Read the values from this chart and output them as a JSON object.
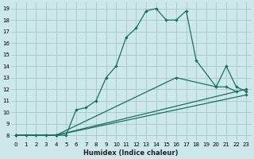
{
  "xlabel": "Humidex (Indice chaleur)",
  "background_color": "#cde8e8",
  "grid_color": "#aacccc",
  "line_color": "#1a7060",
  "xlim": [
    -0.5,
    23.5
  ],
  "ylim": [
    7.5,
    19.5
  ],
  "xticks": [
    0,
    1,
    2,
    3,
    4,
    5,
    6,
    7,
    8,
    9,
    10,
    11,
    12,
    13,
    14,
    15,
    16,
    17,
    18,
    19,
    20,
    21,
    22,
    23
  ],
  "yticks": [
    8,
    9,
    10,
    11,
    12,
    13,
    14,
    15,
    16,
    17,
    18,
    19
  ],
  "line1_x": [
    0,
    1,
    2,
    3,
    4,
    5,
    6,
    7,
    8,
    9,
    10,
    11,
    12,
    13,
    14,
    15,
    16,
    17,
    18,
    20,
    21,
    22
  ],
  "line1_y": [
    8,
    8,
    8,
    8,
    8,
    8,
    10.2,
    10.4,
    11.0,
    13.0,
    14.0,
    16.5,
    17.3,
    18.8,
    19.0,
    18.0,
    18.0,
    18.8,
    14.5,
    12.2,
    12.2,
    11.8
  ],
  "line2_x": [
    0,
    4,
    16,
    20,
    21,
    22,
    23
  ],
  "line2_y": [
    8,
    8,
    13.0,
    12.2,
    14.0,
    12.2,
    11.8
  ],
  "line3_x": [
    0,
    4,
    23
  ],
  "line3_y": [
    8,
    8,
    12.0
  ],
  "line4_x": [
    0,
    4,
    23
  ],
  "line4_y": [
    8,
    8,
    11.5
  ]
}
